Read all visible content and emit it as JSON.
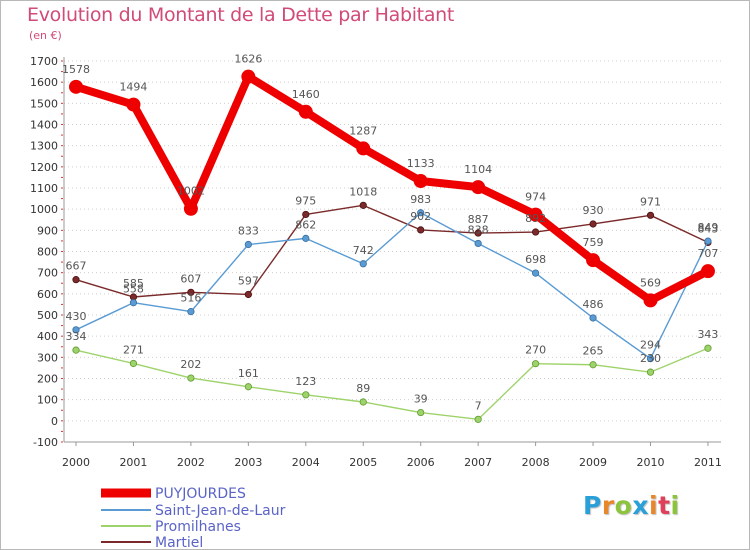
{
  "header": {
    "title": "Evolution du Montant de la Dette par Habitant",
    "subtitle": "(en €)"
  },
  "logo": {
    "letters": [
      "P",
      "r",
      "o",
      "x",
      "i",
      "t",
      "i"
    ],
    "colors": [
      "#2aa0d8",
      "#e8862a",
      "#8cc43c",
      "#2aa0d8",
      "#e8862a",
      "#e0405a",
      "#8cc43c"
    ]
  },
  "chart_data": {
    "type": "line",
    "title": "Evolution du Montant de la Dette par Habitant",
    "subtitle": "(en €)",
    "x": [
      "2000",
      "2001",
      "2002",
      "2003",
      "2004",
      "2005",
      "2006",
      "2007",
      "2008",
      "2009",
      "2010",
      "2011"
    ],
    "ylim": [
      -100,
      1700
    ],
    "yticks": [
      "-100",
      "0",
      "100",
      "200",
      "300",
      "400",
      "500",
      "600",
      "700",
      "800",
      "900",
      "1000",
      "1100",
      "1200",
      "1300",
      "1400",
      "1500",
      "1600",
      "1700"
    ],
    "grid": "horizontal dotted",
    "legend_position": "bottom-left",
    "series": [
      {
        "name": "PUYJOURDES",
        "color": "#ee0000",
        "values": [
          1578,
          1494,
          1002,
          1626,
          1460,
          1287,
          1133,
          1104,
          974,
          759,
          569,
          707
        ],
        "labels": [
          "1578",
          "1494",
          "1002",
          "1626",
          "1460",
          "1287",
          "1133",
          "1104",
          "974",
          "759",
          "569",
          "707"
        ]
      },
      {
        "name": "Saint-Jean-de-Laur",
        "color": "#5a9bd4",
        "values": [
          430,
          558,
          516,
          833,
          862,
          742,
          983,
          838,
          698,
          486,
          294,
          849
        ],
        "labels": [
          "430",
          "558",
          "516",
          "833",
          "862",
          "742",
          "983",
          "838",
          "698",
          "486",
          "294",
          "849"
        ]
      },
      {
        "name": "Promilhanes",
        "color": "#9ed36b",
        "values": [
          334,
          271,
          202,
          161,
          123,
          89,
          39,
          7,
          270,
          265,
          230,
          343
        ],
        "labels": [
          "334",
          "271",
          "202",
          "161",
          "123",
          "89",
          "39",
          "7",
          "270",
          "265",
          "230",
          "343"
        ]
      },
      {
        "name": "Martiel",
        "color": "#7a2a2a",
        "values": [
          667,
          585,
          607,
          597,
          975,
          1018,
          902,
          887,
          892,
          930,
          971,
          843
        ],
        "labels": [
          "667",
          "585",
          "607",
          "597",
          "975",
          "1018",
          "902",
          "887",
          "892",
          "930",
          "971",
          "843"
        ]
      }
    ]
  }
}
